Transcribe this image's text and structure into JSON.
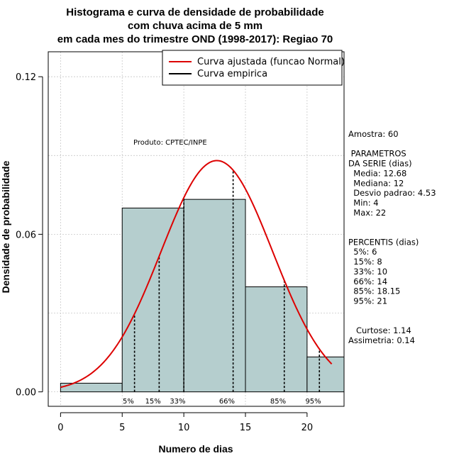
{
  "chart_data": {
    "type": "histogram",
    "title": [
      "Histograma e curva de densidade de probabilidade",
      "com chuva acima de 5 mm",
      "em cada mes do trimestre OND (1998-2017): Regiao 70"
    ],
    "xlabel": "Numero de dias",
    "ylabel": "Densidade de probabilidade",
    "xlim": [
      -1,
      23
    ],
    "ylim": [
      -0.0055,
      0.1295
    ],
    "x_ticks": [
      0,
      5,
      10,
      15,
      20
    ],
    "y_ticks": [
      0.0,
      0.06,
      0.12
    ],
    "y_tick_labels": [
      "0.00",
      "0.06",
      "0.12"
    ],
    "grid": true,
    "bin_edges": [
      0,
      5,
      10,
      15,
      20,
      23
    ],
    "bars": [
      0.0033,
      0.07,
      0.0733,
      0.04,
      0.0133
    ],
    "bar_color": "#b5cece",
    "normal_fit": {
      "name": "Curva ajustada (funcao Normal)",
      "mean": 12.68,
      "sd": 4.53,
      "x_range": [
        0,
        22
      ],
      "color": "#dd0000"
    },
    "empirical_curve": {
      "name": "Curva empirica",
      "color": "#000000"
    },
    "legend": {
      "position": "top-right",
      "entries": [
        {
          "label": "Curva ajustada (funcao Normal)",
          "color": "#dd0000"
        },
        {
          "label": "Curva empirica",
          "color": "#000000"
        }
      ]
    },
    "percentiles": [
      {
        "label": "5%",
        "x": 6
      },
      {
        "label": "15%",
        "x": 8
      },
      {
        "label": "33%",
        "x": 10
      },
      {
        "label": "66%",
        "x": 14
      },
      {
        "label": "85%",
        "x": 18.15
      },
      {
        "label": "95%",
        "x": 21
      }
    ],
    "credit": "Produto: CPTEC/INPE",
    "side_text": [
      "Amostra: 60",
      "",
      " PARAMETROS",
      "DA SERIE (dias)",
      "  Media: 12.68",
      "  Mediana: 12",
      "  Desvio padrao: 4.53",
      "  Min: 4",
      "  Max: 22",
      "",
      "",
      "PERCENTIS (dias)",
      "  5%: 6",
      "  15%: 8",
      "  33%: 10",
      "  66%: 14",
      "  85%: 18.15",
      "  95%: 21",
      "",
      "",
      "   Curtose: 1.14",
      "Assimetria: 0.14"
    ]
  }
}
